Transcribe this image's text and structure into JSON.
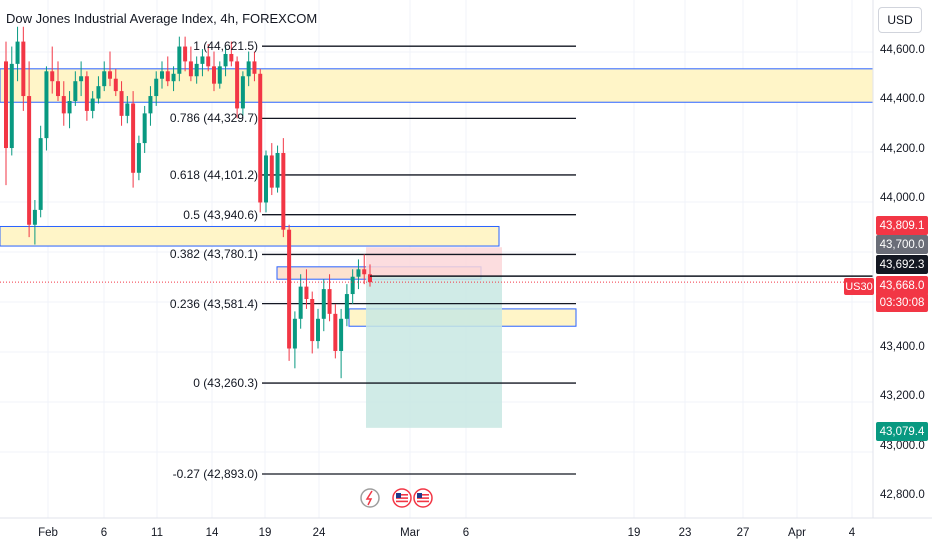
{
  "header": {
    "title": "Dow Jones Industrial Average Index, 4h, FOREXCOM",
    "currency": "USD"
  },
  "symbol": "US30",
  "price_tags": [
    {
      "id": "zone-top-tag",
      "value": "43,809.1",
      "color": "#f23645"
    },
    {
      "id": "zone-mid-tag",
      "value": "43,700.0",
      "color": "#6a6d78"
    },
    {
      "id": "last-close-tag",
      "value": "43,692.3",
      "color": "#131722"
    },
    {
      "id": "current-price-tag",
      "value": "43,668.0",
      "color": "#f23645"
    },
    {
      "id": "countdown-tag",
      "value": "03:30:08",
      "color": "#f23645"
    },
    {
      "id": "target-tag",
      "value": "43,079.4",
      "color": "#089981"
    }
  ],
  "colors": {
    "up": "#089981",
    "down": "#f23645",
    "zone_fill": "#fff5c8",
    "zone_border": "#2962ff",
    "stop_fill": "#fcd7d9",
    "target_fill": "#c8e8e3"
  },
  "chart_data": {
    "type": "candlestick",
    "title": "Dow Jones Industrial Average Index, 4h, FOREXCOM",
    "interval": "4h",
    "ylim": [
      42700,
      44800
    ],
    "y_ticks": [
      "44,600.0",
      "44,400.0",
      "44,200.0",
      "44,000.0",
      "43,400.0",
      "43,200.0",
      "43,000.0",
      "42,800.0"
    ],
    "x_ticks": [
      "Feb",
      "6",
      "11",
      "14",
      "19",
      "24",
      "Mar",
      "6",
      "19",
      "23",
      "27",
      "Apr",
      "4"
    ],
    "grid": true,
    "fibonacci": {
      "levels": [
        {
          "label": "1 (44,621.5)",
          "price": 44621.5
        },
        {
          "label": "0.786 (44,329.7)",
          "price": 44329.7
        },
        {
          "label": "0.618 (44,101.2)",
          "price": 44101.2
        },
        {
          "label": "0.5 (43,940.6)",
          "price": 43940.6
        },
        {
          "label": "0.382 (43,780.1)",
          "price": 43780.1
        },
        {
          "label": "0.236 (43,581.4)",
          "price": 43581.4
        },
        {
          "label": "0 (43,260.3)",
          "price": 43260.3
        },
        {
          "label": "-0.27 (42,893.0)",
          "price": 42893.0
        }
      ]
    },
    "zones": [
      {
        "price_top": 44530,
        "price_bottom": 44395
      },
      {
        "price_top": 43893,
        "price_bottom": 43814
      },
      {
        "price_top": 43730,
        "price_bottom": 43680
      },
      {
        "price_top": 43560,
        "price_bottom": 43490
      }
    ],
    "position": {
      "side": "short",
      "entry": 43692.3,
      "stop": 43809.1,
      "target": 43079.4
    },
    "current_price": 43668.0,
    "candles": [
      [
        44560,
        44640,
        44060,
        44210
      ],
      [
        44210,
        44620,
        44180,
        44550
      ],
      [
        44550,
        44700,
        44480,
        44640
      ],
      [
        44640,
        44700,
        44360,
        44420
      ],
      [
        44420,
        44560,
        43850,
        43900
      ],
      [
        43900,
        44000,
        43820,
        43960
      ],
      [
        43960,
        44300,
        43930,
        44250
      ],
      [
        44250,
        44540,
        44200,
        44520
      ],
      [
        44520,
        44620,
        44430,
        44480
      ],
      [
        44480,
        44560,
        44400,
        44420
      ],
      [
        44420,
        44480,
        44300,
        44350
      ],
      [
        44350,
        44440,
        44290,
        44400
      ],
      [
        44400,
        44520,
        44380,
        44480
      ],
      [
        44480,
        44560,
        44420,
        44500
      ],
      [
        44500,
        44520,
        44320,
        44360
      ],
      [
        44360,
        44440,
        44330,
        44410
      ],
      [
        44410,
        44500,
        44390,
        44460
      ],
      [
        44460,
        44560,
        44440,
        44520
      ],
      [
        44520,
        44600,
        44460,
        44490
      ],
      [
        44490,
        44530,
        44420,
        44440
      ],
      [
        44440,
        44480,
        44300,
        44340
      ],
      [
        44340,
        44420,
        44310,
        44390
      ],
      [
        44390,
        44440,
        44050,
        44110
      ],
      [
        44110,
        44260,
        44080,
        44230
      ],
      [
        44230,
        44380,
        44190,
        44350
      ],
      [
        44350,
        44460,
        44300,
        44420
      ],
      [
        44420,
        44520,
        44380,
        44490
      ],
      [
        44490,
        44560,
        44450,
        44520
      ],
      [
        44520,
        44580,
        44460,
        44480
      ],
      [
        44480,
        44540,
        44440,
        44510
      ],
      [
        44510,
        44660,
        44480,
        44620
      ],
      [
        44620,
        44660,
        44520,
        44560
      ],
      [
        44560,
        44620,
        44480,
        44500
      ],
      [
        44500,
        44580,
        44470,
        44550
      ],
      [
        44550,
        44610,
        44500,
        44580
      ],
      [
        44580,
        44630,
        44520,
        44540
      ],
      [
        44540,
        44600,
        44440,
        44470
      ],
      [
        44470,
        44560,
        44450,
        44540
      ],
      [
        44540,
        44620,
        44500,
        44590
      ],
      [
        44590,
        44640,
        44540,
        44560
      ],
      [
        44560,
        44580,
        44330,
        44370
      ],
      [
        44370,
        44520,
        44340,
        44500
      ],
      [
        44500,
        44600,
        44460,
        44560
      ],
      [
        44560,
        44600,
        44480,
        44510
      ],
      [
        44510,
        44530,
        43950,
        43990
      ],
      [
        43990,
        44200,
        43950,
        44180
      ],
      [
        44180,
        44230,
        44020,
        44050
      ],
      [
        44050,
        44220,
        44030,
        44190
      ],
      [
        44190,
        44250,
        43850,
        43880
      ],
      [
        43880,
        43900,
        43350,
        43400
      ],
      [
        43400,
        43550,
        43320,
        43520
      ],
      [
        43520,
        43700,
        43480,
        43650
      ],
      [
        43650,
        43720,
        43560,
        43600
      ],
      [
        43600,
        43630,
        43380,
        43430
      ],
      [
        43430,
        43560,
        43400,
        43520
      ],
      [
        43520,
        43680,
        43470,
        43640
      ],
      [
        43640,
        43700,
        43510,
        43540
      ],
      [
        43540,
        43580,
        43360,
        43390
      ],
      [
        43390,
        43560,
        43280,
        43520
      ],
      [
        43520,
        43660,
        43490,
        43620
      ],
      [
        43620,
        43720,
        43580,
        43690
      ],
      [
        43690,
        43760,
        43640,
        43720
      ],
      [
        43720,
        43780,
        43660,
        43700
      ],
      [
        43700,
        43740,
        43650,
        43668
      ]
    ]
  }
}
